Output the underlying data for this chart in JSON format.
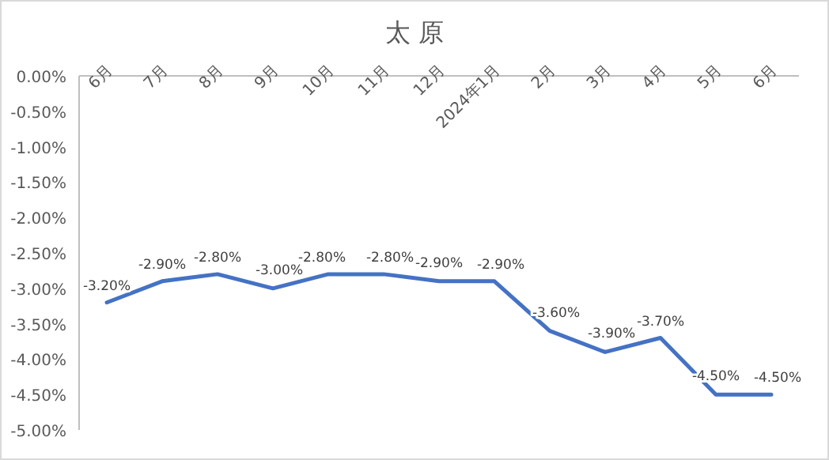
{
  "chart_data": {
    "type": "line",
    "title": "太 原",
    "categories": [
      "6月",
      "7月",
      "8月",
      "9月",
      "10月",
      "11月",
      "12月",
      "2024年1月",
      "2月",
      "3月",
      "4月",
      "5月",
      "6月"
    ],
    "series": [
      {
        "color": "#4472c4",
        "values": [
          -3.2,
          -2.9,
          -2.8,
          -3.0,
          -2.8,
          -2.8,
          -2.9,
          -2.9,
          -3.6,
          -3.9,
          -3.7,
          -4.5,
          -4.5
        ],
        "value_labels": [
          "-3.20%",
          "-2.90%",
          "-2.80%",
          "-3.00%",
          "-2.80%",
          "-2.80%",
          "-2.90%",
          "-2.90%",
          "-3.60%",
          "-3.90%",
          "-3.70%",
          "-4.50%",
          "-4.50%"
        ]
      }
    ],
    "ylim": [
      -5,
      0
    ],
    "yticks": [
      {
        "value": 0,
        "label": "0.00%"
      },
      {
        "value": -0.5,
        "label": "-0.50%"
      },
      {
        "value": -1,
        "label": "-1.00%"
      },
      {
        "value": -1.5,
        "label": "-1.50%"
      },
      {
        "value": -2,
        "label": "-2.00%"
      },
      {
        "value": -2.5,
        "label": "-2.50%"
      },
      {
        "value": -3,
        "label": "-3.00%"
      },
      {
        "value": -3.5,
        "label": "-3.50%"
      },
      {
        "value": -4,
        "label": "-4.00%"
      },
      {
        "value": -4.5,
        "label": "-4.50%"
      },
      {
        "value": -5,
        "label": "-5.00%"
      }
    ],
    "grid": false,
    "marker": "none",
    "line_style": "solid"
  }
}
